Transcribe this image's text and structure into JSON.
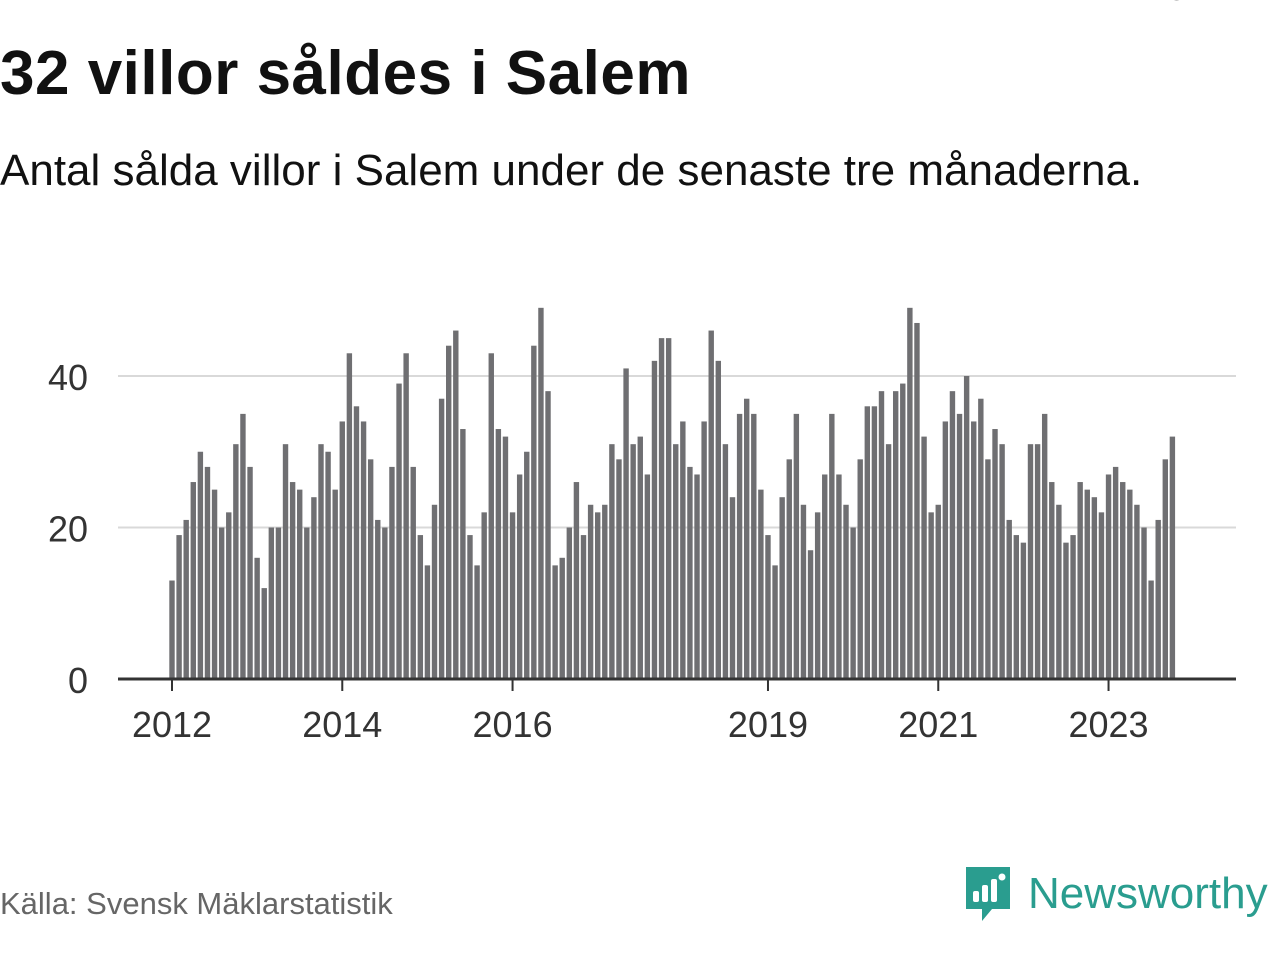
{
  "title": "32 villor såldes i Salem",
  "subtitle": "Antal sålda villor i Salem under de senaste tre månaderna.",
  "source": "Källa: Svensk Mäklarstatistik",
  "brand": {
    "name": "Newsworthy",
    "icon": "newsworthy-logo-icon"
  },
  "colors": {
    "bar": "#6f6f72",
    "highlight": "#2a9d8f",
    "grid": "#d9d9d9",
    "axis": "#333333",
    "brand": "#2a9d8f"
  },
  "chart_data": {
    "type": "bar",
    "title": "32 villor såldes i Salem",
    "subtitle": "Antal sålda villor i Salem under de senaste tre månaderna.",
    "xlabel": "",
    "ylabel": "",
    "ylim": [
      0,
      50
    ],
    "yticks": [
      0,
      20,
      40
    ],
    "grid": true,
    "x_start": "2012-01",
    "frequency": "monthly",
    "xticks": [
      {
        "label": "2012",
        "index": 0
      },
      {
        "label": "2014",
        "index": 24
      },
      {
        "label": "2016",
        "index": 48
      },
      {
        "label": "2019",
        "index": 84
      },
      {
        "label": "2021",
        "index": 108
      },
      {
        "label": "2023",
        "index": 132
      }
    ],
    "values": [
      13,
      19,
      21,
      26,
      30,
      28,
      25,
      20,
      22,
      31,
      35,
      28,
      16,
      12,
      20,
      20,
      31,
      26,
      25,
      20,
      24,
      31,
      30,
      25,
      34,
      43,
      36,
      34,
      29,
      21,
      20,
      28,
      39,
      43,
      28,
      19,
      15,
      23,
      37,
      44,
      46,
      33,
      19,
      15,
      22,
      43,
      33,
      32,
      22,
      27,
      30,
      44,
      49,
      38,
      15,
      16,
      20,
      26,
      19,
      23,
      22,
      23,
      31,
      29,
      41,
      31,
      32,
      27,
      42,
      45,
      45,
      31,
      34,
      28,
      27,
      34,
      46,
      42,
      31,
      24,
      35,
      37,
      35,
      25,
      19,
      15,
      24,
      29,
      35,
      23,
      17,
      22,
      27,
      35,
      27,
      23,
      20,
      29,
      36,
      36,
      38,
      31,
      38,
      39,
      49,
      47,
      32,
      22,
      23,
      34,
      38,
      35,
      40,
      34,
      37,
      29,
      33,
      31,
      21,
      19,
      18,
      31,
      31,
      35,
      26,
      23,
      18,
      19,
      26,
      25,
      24,
      22,
      27,
      28,
      26,
      25,
      23,
      20,
      13,
      21,
      29,
      32
    ],
    "highlight": {
      "index": 143,
      "label": "32"
    }
  }
}
